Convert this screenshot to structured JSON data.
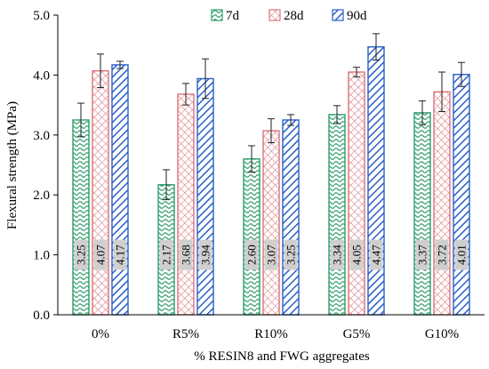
{
  "chart_data": {
    "type": "bar",
    "categories": [
      "0%",
      "R5%",
      "R10%",
      "G5%",
      "G10%"
    ],
    "series": [
      {
        "name": "7d",
        "values": [
          3.25,
          2.17,
          2.6,
          3.34,
          3.37
        ],
        "errors": [
          0.28,
          0.25,
          0.22,
          0.15,
          0.2
        ],
        "labels": [
          "3.25",
          "2.17",
          "2.60",
          "3.34",
          "3.37"
        ],
        "pattern": "wave-green",
        "color": "#2e9e6c"
      },
      {
        "name": "28d",
        "values": [
          4.07,
          3.68,
          3.07,
          4.05,
          3.72
        ],
        "errors": [
          0.28,
          0.18,
          0.2,
          0.08,
          0.33
        ],
        "labels": [
          "4.07",
          "3.68",
          "3.07",
          "4.05",
          "3.72"
        ],
        "pattern": "grid-red",
        "color": "#d9747a"
      },
      {
        "name": "90d",
        "values": [
          4.17,
          3.94,
          3.25,
          4.47,
          4.01
        ],
        "errors": [
          0.06,
          0.33,
          0.09,
          0.22,
          0.2
        ],
        "labels": [
          "4.17",
          "3.94",
          "3.25",
          "4.47",
          "4.01"
        ],
        "pattern": "diag-blue",
        "color": "#2a5fc7"
      }
    ],
    "xlabel": "% RESIN8 and FWG aggregates",
    "ylabel": "Flexural strength (MPa)",
    "ylim": [
      0.0,
      5.0
    ],
    "yticks": [
      "0.0",
      "1.0",
      "2.0",
      "3.0",
      "4.0",
      "5.0"
    ],
    "grid": false,
    "legend_position": "top-center",
    "data_label_position": "inside-bar"
  }
}
